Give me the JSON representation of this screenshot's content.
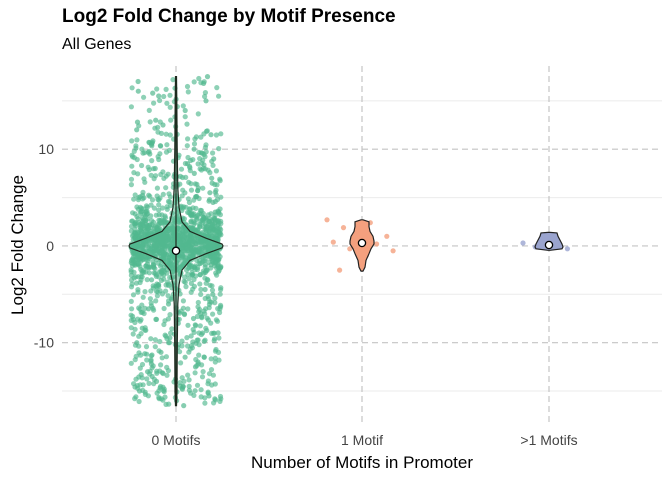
{
  "chart_data": {
    "type": "violin",
    "title": "Log2 Fold Change by Motif Presence",
    "subtitle": "All Genes",
    "xlabel": "Number of Motifs in Promoter",
    "ylabel": "Log2 Fold Change",
    "categories": [
      "0 Motifs",
      "1 Motif",
      ">1 Motifs"
    ],
    "ylim": [
      -18.2,
      18.6
    ],
    "yticks": [
      -10,
      0,
      10
    ],
    "ytick_labels": [
      "-10",
      "0",
      "10"
    ],
    "grid": true,
    "legend": "none",
    "series": [
      {
        "category": "0 Motifs",
        "color": "#52b88f",
        "mean": -0.5,
        "n_points_approx": 1500,
        "range": [
          -16.5,
          17.5
        ],
        "points": [
          17.5,
          17.0,
          16.8,
          16.3,
          16.0,
          15.8,
          15.5,
          15.0,
          14.0,
          13.0,
          12.8,
          12.5,
          12.0,
          11.5,
          10.5,
          10.0,
          9.5,
          9.0,
          8.5,
          8.0,
          7.5,
          7.0,
          6.5,
          6.0,
          5.5,
          5.0,
          4.5,
          4.0,
          3.5,
          3.0,
          2.5,
          2.0,
          1.5,
          1.0,
          0.5,
          0.0,
          -0.5,
          -1.0,
          -1.5,
          -2.0,
          -2.5,
          -3.0,
          -3.5,
          -4.0,
          -4.5,
          -5.0,
          -5.5,
          -6.0,
          -6.5,
          -7.0,
          -7.5,
          -8.0,
          -8.5,
          -9.0,
          -9.5,
          -10.0,
          -10.5,
          -11.0,
          -11.5,
          -12.0,
          -12.5,
          -13.0,
          -13.5,
          -14.0,
          -14.5,
          -15.0,
          -15.5,
          -16.0,
          -16.5
        ]
      },
      {
        "category": "1 Motif",
        "color": "#f4a07e",
        "mean": 0.3,
        "points": [
          2.7,
          2.4,
          1.9,
          1.0,
          0.6,
          0.4,
          0.2,
          -0.3,
          -0.5,
          -1.0,
          -2.5
        ]
      },
      {
        "category": ">1 Motifs",
        "color": "#9aa4cf",
        "mean": 0.1,
        "points": [
          0.3,
          0.1,
          -0.1,
          -0.3,
          0.2
        ]
      }
    ]
  }
}
